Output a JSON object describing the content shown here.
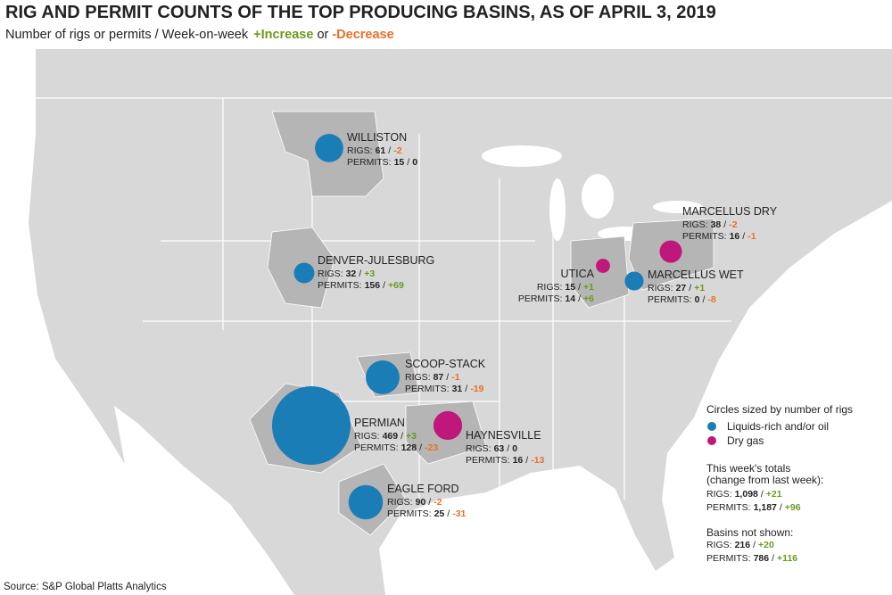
{
  "header": {
    "title": "RIG AND PERMIT COUNTS OF THE TOP PRODUCING BASINS, AS OF APRIL 3, 2019",
    "subtitle": "Number of rigs or permits / Week-on-week",
    "increase": "+Increase",
    "or": "or",
    "decrease": "-Decrease"
  },
  "labels": {
    "rigs": "RIGS:",
    "permits": "PERMITS:",
    "separator": "/"
  },
  "colors": {
    "oil": "#1b7db5",
    "gas": "#c0177c"
  },
  "basins": [
    {
      "name": "WILLISTON",
      "kind": "oil",
      "rigs": 61,
      "rigs_change": "-2",
      "permits": 15,
      "permits_change": "0"
    },
    {
      "name": "DENVER-JULESBURG",
      "kind": "oil",
      "rigs": 32,
      "rigs_change": "+3",
      "permits": 156,
      "permits_change": "+69"
    },
    {
      "name": "SCOOP-STACK",
      "kind": "oil",
      "rigs": 87,
      "rigs_change": "-1",
      "permits": 31,
      "permits_change": "-19"
    },
    {
      "name": "PERMIAN",
      "kind": "oil",
      "rigs": 469,
      "rigs_change": "+3",
      "permits": 128,
      "permits_change": "-23"
    },
    {
      "name": "HAYNESVILLE",
      "kind": "gas",
      "rigs": 63,
      "rigs_change": "0",
      "permits": 16,
      "permits_change": "-13"
    },
    {
      "name": "EAGLE FORD",
      "kind": "oil",
      "rigs": 90,
      "rigs_change": "-2",
      "permits": 25,
      "permits_change": "-31"
    },
    {
      "name": "UTICA",
      "kind": "gas",
      "rigs": 15,
      "rigs_change": "+1",
      "permits": 14,
      "permits_change": "+6"
    },
    {
      "name": "MARCELLUS DRY",
      "kind": "gas",
      "rigs": 38,
      "rigs_change": "-2",
      "permits": 16,
      "permits_change": "-1"
    },
    {
      "name": "MARCELLUS WET",
      "kind": "oil",
      "rigs": 27,
      "rigs_change": "+1",
      "permits": 0,
      "permits_change": "-8"
    }
  ],
  "legend": {
    "title": "Circles sized by number of rigs",
    "oil": "Liquids-rich and/or oil",
    "gas": "Dry gas"
  },
  "totals": {
    "heading": [
      "This week's totals",
      "(change from last week):"
    ],
    "rigs": {
      "value": 1098,
      "label": "1,098"
    },
    "rigs_change": "+21",
    "permits": {
      "value": 1187,
      "label": "1,187"
    },
    "permits_change": "+96"
  },
  "not_shown": {
    "heading": "Basins not shown:",
    "rigs": 216,
    "rigs_change": "+20",
    "permits": 786,
    "permits_change": "+116"
  },
  "source": "Source: S&P Global Platts Analytics"
}
